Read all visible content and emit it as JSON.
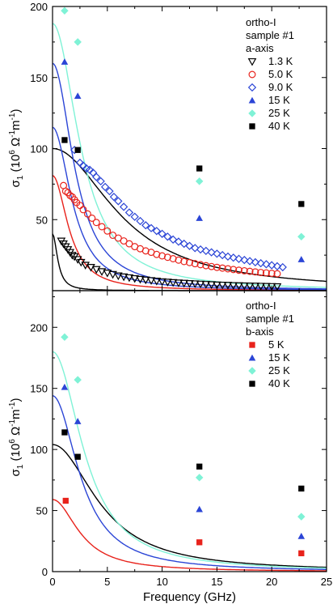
{
  "chart_data": [
    {
      "type": "scatter",
      "title": "",
      "annotation": [
        "ortho-I",
        "sample #1",
        "a-axis"
      ],
      "xlabel": "",
      "ylabel_main": "σ",
      "ylabel_sub": "1",
      "ylabel_units": "(10",
      "ylabel_exp": "6",
      "ylabel_rest": " Ω",
      "ylabel_exp2": "-1",
      "ylabel_m": "m",
      "ylabel_exp3": "-1",
      "ylabel_close": ")",
      "xlim": [
        0,
        25
      ],
      "ylim": [
        0,
        200
      ],
      "yticks": [
        50,
        100,
        150,
        200
      ],
      "ytick_labels": [
        "50",
        "100",
        "150",
        "200"
      ],
      "legend_position": "top-right",
      "series": [
        {
          "name": "1.3 K",
          "marker": "triangle-down-open",
          "color": "#000000",
          "x": [
            0.8,
            1.0,
            1.2,
            1.4,
            1.6,
            1.8,
            2.0,
            2.3,
            2.6,
            3.0,
            3.5,
            4.0,
            4.5,
            5.0,
            5.5,
            6.0,
            6.5,
            7.0,
            7.5,
            8.0,
            8.5,
            9.0,
            9.5,
            10.0,
            10.5,
            11.0,
            11.5,
            12.0,
            12.5,
            13.0,
            13.5,
            14.0,
            14.5,
            15.0,
            15.5,
            16.0,
            16.5,
            17.0,
            17.5,
            18.0,
            18.5,
            19.0,
            19.5,
            20.0,
            20.5
          ],
          "y": [
            35,
            33,
            31,
            29,
            27,
            25,
            24,
            22,
            20,
            18,
            16.5,
            15,
            13.5,
            12.5,
            11.5,
            10.5,
            9.8,
            9.2,
            8.6,
            8.1,
            7.6,
            7.2,
            6.8,
            6.4,
            6.1,
            5.8,
            5.5,
            5.3,
            5.1,
            4.9,
            4.7,
            4.5,
            4.3,
            4.1,
            4.0,
            3.9,
            3.7,
            3.6,
            3.5,
            3.4,
            3.3,
            3.2,
            3.1,
            3.0,
            2.9
          ]
        },
        {
          "name": "5.0 K",
          "marker": "circle-open",
          "color": "#e8221b",
          "x": [
            1.0,
            1.2,
            1.4,
            1.6,
            1.8,
            2.0,
            2.2,
            2.5,
            2.8,
            3.2,
            3.6,
            4.0,
            4.5,
            5.0,
            5.5,
            6.0,
            6.5,
            7.0,
            7.5,
            8.0,
            8.5,
            9.0,
            9.5,
            10.0,
            10.5,
            11.0,
            11.5,
            12.0,
            12.5,
            13.0,
            13.5,
            14.0,
            14.5,
            15.0,
            15.5,
            16.0,
            16.5,
            17.0,
            17.5,
            18.0,
            18.5,
            19.0,
            19.5,
            20.0,
            20.5
          ],
          "y": [
            74,
            70,
            69,
            67,
            66,
            64,
            62,
            60,
            57,
            54,
            51,
            48,
            45,
            42,
            39,
            37,
            35,
            33,
            31,
            29.5,
            28,
            27,
            25.5,
            24.5,
            23.5,
            22.5,
            21.5,
            20.5,
            19.8,
            19,
            18.3,
            17.6,
            17,
            16.4,
            15.9,
            15.4,
            14.9,
            14.4,
            14,
            13.6,
            13.2,
            12.8,
            12.5,
            12.2,
            11.9
          ]
        },
        {
          "name": "9.0 K",
          "marker": "diamond-open",
          "color": "#2b45d6",
          "x": [
            2.0,
            2.5,
            2.8,
            3.1,
            3.4,
            3.7,
            4.0,
            4.4,
            4.8,
            5.2,
            5.6,
            6.0,
            6.5,
            7.0,
            7.5,
            8.0,
            8.5,
            9.0,
            9.5,
            10.0,
            10.5,
            11.0,
            11.5,
            12.0,
            12.5,
            13.0,
            13.5,
            14.0,
            14.5,
            15.0,
            15.5,
            16.0,
            16.5,
            17.0,
            17.5,
            18.0,
            18.5,
            19.0,
            19.5,
            20.0,
            20.5,
            21.0
          ],
          "y": [
            99,
            90,
            88,
            86,
            85,
            83,
            80,
            77,
            73,
            70,
            66,
            63,
            59,
            55,
            52,
            49,
            46,
            44,
            42,
            40,
            38,
            36,
            34.5,
            33,
            31.5,
            30,
            29,
            28,
            27,
            26,
            25,
            24,
            23.2,
            22.4,
            21.6,
            20.8,
            20,
            19.3,
            18.6,
            17.9,
            17.2,
            16.5
          ]
        },
        {
          "name": "15  K",
          "marker": "triangle-up-filled",
          "color": "#2b45d6",
          "x": [
            1.1,
            2.3,
            13.4,
            22.7
          ],
          "y": [
            161,
            137,
            51,
            22
          ]
        },
        {
          "name": "25  K",
          "marker": "diamond-filled",
          "color": "#7ff2d6",
          "x": [
            1.1,
            2.3,
            13.4,
            22.7
          ],
          "y": [
            197,
            175,
            77,
            38
          ]
        },
        {
          "name": "40  K",
          "marker": "square-filled",
          "color": "#000000",
          "x": [
            1.1,
            2.3,
            13.4,
            22.7
          ],
          "y": [
            106,
            99,
            86,
            61
          ]
        }
      ],
      "fits": [
        {
          "color": "#000000",
          "sigma0": 100,
          "tau": 0.024
        },
        {
          "color": "#e8221b",
          "sigma0": 81,
          "tau": 0.097
        },
        {
          "color": "#2b45d6",
          "sigma0": 115,
          "tau": 0.08
        },
        {
          "color": "#2b45d6",
          "sigma0": 160,
          "tau": 0.072
        },
        {
          "color": "#7ff2d6",
          "sigma0": 188,
          "tau": 0.057
        },
        {
          "color": "#000000",
          "sigma0": 40,
          "tau": 0.3
        }
      ]
    },
    {
      "type": "scatter",
      "title": "",
      "annotation": [
        "ortho-I",
        "sample #1",
        "b-axis"
      ],
      "xlabel": "Frequency (GHz)",
      "ylabel_main": "σ",
      "ylabel_sub": "1",
      "ylabel_units": "(10",
      "ylabel_exp": "6",
      "ylabel_rest": " Ω",
      "ylabel_exp2": "-1",
      "ylabel_m": "m",
      "ylabel_exp3": "-1",
      "ylabel_close": ")",
      "xlim": [
        0,
        25
      ],
      "ylim": [
        0,
        230
      ],
      "xticks": [
        0,
        5,
        10,
        15,
        20,
        25
      ],
      "xtick_labels": [
        "0",
        "5",
        "10",
        "15",
        "20",
        "25"
      ],
      "yticks": [
        0,
        50,
        100,
        150,
        200
      ],
      "ytick_labels": [
        "0",
        "50",
        "100",
        "150",
        "200"
      ],
      "legend_position": "top-right",
      "series": [
        {
          "name": "5 K",
          "marker": "square-filled",
          "color": "#e8221b",
          "x": [
            1.2,
            13.4,
            22.7
          ],
          "y": [
            58,
            24,
            15
          ]
        },
        {
          "name": "15 K",
          "marker": "triangle-up-filled",
          "color": "#2b45d6",
          "x": [
            1.1,
            2.3,
            13.4,
            22.7
          ],
          "y": [
            151,
            123,
            51,
            29
          ]
        },
        {
          "name": "25 K",
          "marker": "diamond-filled",
          "color": "#7ff2d6",
          "x": [
            1.1,
            2.3,
            13.4,
            22.7
          ],
          "y": [
            192,
            157,
            77,
            45
          ]
        },
        {
          "name": "40 K",
          "marker": "square-filled",
          "color": "#000000",
          "x": [
            1.1,
            2.3,
            13.4,
            22.7
          ],
          "y": [
            114,
            94,
            86,
            68
          ]
        }
      ],
      "fits": [
        {
          "color": "#000000",
          "sigma0": 104,
          "tau": 0.034
        },
        {
          "color": "#2b45d6",
          "sigma0": 144,
          "tau": 0.057
        },
        {
          "color": "#7ff2d6",
          "sigma0": 180,
          "tau": 0.05
        },
        {
          "color": "#e8221b",
          "sigma0": 59,
          "tau": 0.058
        }
      ]
    }
  ]
}
